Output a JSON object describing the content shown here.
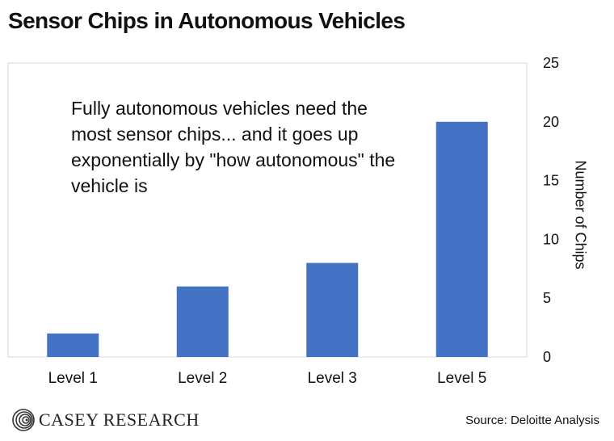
{
  "branding": {
    "logo_text": "CASEY RESEARCH",
    "logo_icon": "swirl-logo-icon"
  },
  "source": "Source: Deloitte Analysis",
  "colors": {
    "bar": "#4472C4",
    "frame": "#D9D9D9",
    "text": "#111111"
  },
  "chart_data": {
    "type": "bar",
    "title": "Sensor Chips in Autonomous Vehicles",
    "annotation": "Fully autonomous vehicles need the most sensor chips... and it goes up exponentially by \"how autonomous\" the vehicle is",
    "categories": [
      "Level 1",
      "Level 2",
      "Level 3",
      "Level 5"
    ],
    "series": [
      {
        "values": [
          2,
          6,
          8,
          20
        ]
      }
    ],
    "xlabel": "",
    "ylabel": "Number of Chips",
    "ylim": [
      0,
      25
    ],
    "yticks": [
      "0",
      "5",
      "10",
      "15",
      "20",
      "25"
    ],
    "y_axis_side": "right",
    "grid": false,
    "legend": "none"
  }
}
